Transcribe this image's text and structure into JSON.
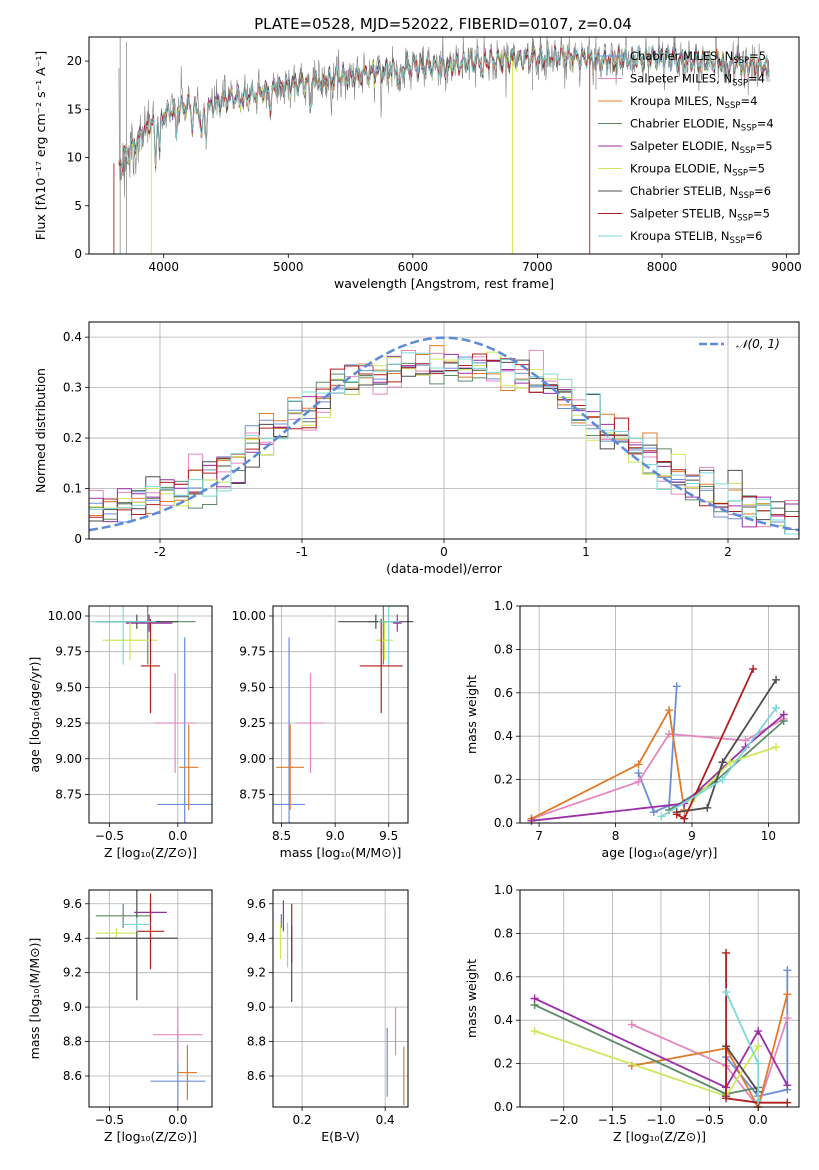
{
  "figure_title": "PLATE=0528, MJD=52022, FIBERID=0107, z=0.04",
  "series": [
    {
      "name": "Chabrier MILES, N$_{SSP}$=5",
      "label_main": "Chabrier MILES, N",
      "label_sub": "SSP",
      "label_end": "=5",
      "color": "#6a8fd8"
    },
    {
      "name": "Salpeter MILES, N$_{SSP}$=4",
      "label_main": "Salpeter MILES, N",
      "label_sub": "SSP",
      "label_end": "=4",
      "color": "#e487c0"
    },
    {
      "name": "Kroupa MILES, N$_{SSP}$=4",
      "label_main": "Kroupa MILES, N",
      "label_sub": "SSP",
      "label_end": "=4",
      "color": "#e07b2a"
    },
    {
      "name": "Chabrier ELODIE, N$_{SSP}$=4",
      "label_main": "Chabrier ELODIE, N",
      "label_sub": "SSP",
      "label_end": "=4",
      "color": "#5e8a68"
    },
    {
      "name": "Salpeter ELODIE, N$_{SSP}$=5",
      "label_main": "Salpeter ELODIE, N",
      "label_sub": "SSP",
      "label_end": "=5",
      "color": "#9b2fa8"
    },
    {
      "name": "Kroupa ELODIE, N$_{SSP}$=5",
      "label_main": "Kroupa ELODIE, N",
      "label_sub": "SSP",
      "label_end": "=5",
      "color": "#cde85a"
    },
    {
      "name": "Chabrier STELIB, N$_{SSP}$=6",
      "label_main": "Chabrier STELIB, N",
      "label_sub": "SSP",
      "label_end": "=6",
      "color": "#4d4d4d"
    },
    {
      "name": "Salpeter STELIB, N$_{SSP}$=5",
      "label_main": "Salpeter STELIB, N",
      "label_sub": "SSP",
      "label_end": "=5",
      "color": "#b01f1f"
    },
    {
      "name": "Kroupa STELIB, N$_{SSP}$=6",
      "label_main": "Kroupa STELIB, N",
      "label_sub": "SSP",
      "label_end": "=6",
      "color": "#7fd8d8"
    }
  ],
  "chart_data": [
    {
      "id": "spectrum",
      "type": "line",
      "xlabel": "wavelength [Angstrom, rest frame]",
      "ylabel": "Flux [fλ10⁻¹⁷ erg cm⁻² s⁻¹ A⁻¹]",
      "xlim": [
        3400,
        9100
      ],
      "ylim": [
        0,
        22.5
      ],
      "xticks": [
        4000,
        5000,
        6000,
        7000,
        8000,
        9000
      ],
      "yticks": [
        0,
        5,
        10,
        15,
        20
      ],
      "data_color": "#808080",
      "data": {
        "x": [
          3650,
          3700,
          3800,
          3900,
          4000,
          4100,
          4200,
          4300,
          4400,
          4500,
          4700,
          5000,
          5200,
          5500,
          5800,
          6000,
          6300,
          6500,
          6800,
          7000,
          7300,
          7500,
          7800,
          8000,
          8300,
          8500,
          8800
        ],
        "y": [
          9.5,
          10.5,
          12.0,
          13.5,
          14.5,
          15.0,
          15.5,
          14.5,
          15.5,
          16.0,
          16.5,
          17.5,
          18.0,
          18.5,
          19.0,
          19.5,
          19.5,
          20.0,
          20.2,
          20.3,
          20.5,
          20.0,
          20.2,
          20.5,
          19.8,
          20.0,
          19.5
        ]
      },
      "model_drops": [
        {
          "series": "Kroupa ELODIE, N$_{SSP}$=5",
          "wavelength_range": [
            3900,
            6800
          ]
        },
        {
          "series": "Salpeter STELIB, N$_{SSP}$=5",
          "wavelength_range": [
            3600,
            7420
          ]
        }
      ],
      "legend_loc": "right"
    },
    {
      "id": "residuals",
      "type": "histogram",
      "xlabel": "(data-model)/error",
      "ylabel": "Normed distribution",
      "xlim": [
        -2.5,
        2.5
      ],
      "ylim": [
        0,
        0.43
      ],
      "xticks": [
        -2,
        -1,
        0,
        1,
        2
      ],
      "yticks": [
        0.0,
        0.1,
        0.2,
        0.3,
        0.4
      ],
      "bins": [
        -2.5,
        -2.4,
        -2.3,
        -2.2,
        -2.1,
        -2.0,
        -1.9,
        -1.8,
        -1.7,
        -1.6,
        -1.5,
        -1.4,
        -1.3,
        -1.2,
        -1.1,
        -1.0,
        -0.9,
        -0.8,
        -0.7,
        -0.6,
        -0.5,
        -0.4,
        -0.3,
        -0.2,
        -0.1,
        0.0,
        0.1,
        0.2,
        0.3,
        0.4,
        0.5,
        0.6,
        0.7,
        0.8,
        0.9,
        1.0,
        1.1,
        1.2,
        1.3,
        1.4,
        1.5,
        1.6,
        1.7,
        1.8,
        1.9,
        2.0,
        2.1,
        2.2,
        2.3,
        2.4,
        2.5
      ],
      "base_density": [
        0.055,
        0.06,
        0.07,
        0.08,
        0.085,
        0.09,
        0.1,
        0.11,
        0.12,
        0.14,
        0.16,
        0.18,
        0.2,
        0.22,
        0.24,
        0.26,
        0.28,
        0.3,
        0.31,
        0.32,
        0.33,
        0.34,
        0.345,
        0.35,
        0.35,
        0.35,
        0.35,
        0.345,
        0.34,
        0.33,
        0.32,
        0.31,
        0.3,
        0.28,
        0.26,
        0.24,
        0.22,
        0.2,
        0.18,
        0.16,
        0.14,
        0.12,
        0.11,
        0.1,
        0.085,
        0.075,
        0.065,
        0.055,
        0.045,
        0.04
      ],
      "reference_label": "𝒩(0, 1)",
      "reference_color": "#5b8bd9",
      "legend_loc": "top-right"
    },
    {
      "id": "age-vs-Z",
      "type": "errorbar",
      "xlabel": "Z [log₁₀(Z/Z⊙)]",
      "ylabel": "age  [log₁₀(age/yr)]",
      "xlim": [
        -0.65,
        0.25
      ],
      "ylim": [
        8.55,
        10.07
      ],
      "xticks": [
        -0.5,
        0.0
      ],
      "xtick_labels": [
        "−0.5",
        "0.0"
      ],
      "yticks": [
        8.75,
        9.0,
        9.25,
        9.5,
        9.75,
        10.0
      ],
      "ytick_labels": [
        "8.75",
        "9.00",
        "9.25",
        "9.50",
        "9.75",
        "10.00"
      ],
      "points": [
        {
          "x": 0.05,
          "xerr": 0.2,
          "y": 8.68,
          "yerr": 1.17
        },
        {
          "x": -0.02,
          "xerr": 0.15,
          "y": 9.25,
          "yerr": 0.35
        },
        {
          "x": 0.08,
          "xerr": 0.07,
          "y": 8.94,
          "yerr": 0.3
        },
        {
          "x": -0.22,
          "xerr": 0.35,
          "y": 9.96,
          "yerr": 0.3
        },
        {
          "x": -0.21,
          "xerr": 0.17,
          "y": 9.95,
          "yerr": 0.06
        },
        {
          "x": -0.35,
          "xerr": 0.2,
          "y": 9.83,
          "yerr": 0.14
        },
        {
          "x": -0.3,
          "xerr": 0.3,
          "y": 9.96,
          "yerr": 0.05
        },
        {
          "x": -0.2,
          "xerr": 0.07,
          "y": 9.65,
          "yerr": 0.33
        },
        {
          "x": -0.4,
          "xerr": 0.24,
          "y": 9.96,
          "yerr": 0.3
        }
      ]
    },
    {
      "id": "age-vs-mass",
      "type": "errorbar",
      "xlabel": "mass [log₁₀(M/M⊙)]",
      "ylabel": "",
      "xlim": [
        8.42,
        9.68
      ],
      "ylim": [
        8.55,
        10.07
      ],
      "xticks": [
        8.5,
        9.0,
        9.5
      ],
      "xtick_labels": [
        "8.5",
        "9.0",
        "9.5"
      ],
      "yticks": [
        8.75,
        9.0,
        9.25,
        9.5,
        9.75,
        10.0
      ],
      "ytick_labels": [
        "8.75",
        "9.00",
        "9.25",
        "9.50",
        "9.75",
        "10.00"
      ],
      "points": [
        {
          "x": 8.57,
          "xerr": 0.15,
          "y": 8.68,
          "yerr": 1.17
        },
        {
          "x": 8.77,
          "xerr": 0.13,
          "y": 9.25,
          "yerr": 0.35
        },
        {
          "x": 8.58,
          "xerr": 0.13,
          "y": 8.94,
          "yerr": 0.3
        },
        {
          "x": 9.45,
          "xerr": 0.15,
          "y": 9.96,
          "yerr": 0.3
        },
        {
          "x": 9.58,
          "xerr": 0.04,
          "y": 9.95,
          "yerr": 0.06
        },
        {
          "x": 9.46,
          "xerr": 0.08,
          "y": 9.83,
          "yerr": 0.14
        },
        {
          "x": 9.38,
          "xerr": 0.35,
          "y": 9.96,
          "yerr": 0.05
        },
        {
          "x": 9.43,
          "xerr": 0.2,
          "y": 9.65,
          "yerr": 0.33
        },
        {
          "x": 9.5,
          "xerr": 0.1,
          "y": 9.96,
          "yerr": 0.3
        }
      ]
    },
    {
      "id": "weight-vs-age",
      "type": "line",
      "xlabel": "age  [log₁₀(age/yr)]",
      "ylabel": "mass weight",
      "xlim": [
        6.75,
        10.4
      ],
      "ylim": [
        0,
        1.0
      ],
      "xticks": [
        7,
        8,
        9,
        10
      ],
      "xtick_labels": [
        "7",
        "8",
        "9",
        "10"
      ],
      "yticks": [
        0.0,
        0.2,
        0.4,
        0.6,
        0.8,
        1.0
      ],
      "ytick_labels": [
        "0.0",
        "0.2",
        "0.4",
        "0.6",
        "0.8",
        "1.0"
      ],
      "lines": [
        {
          "x": [
            8.3,
            8.5,
            8.7,
            8.8
          ],
          "y": [
            0.23,
            0.05,
            0.08,
            0.63
          ]
        },
        {
          "x": [
            6.9,
            8.3,
            8.7,
            9.7,
            10.2
          ],
          "y": [
            0.02,
            0.19,
            0.41,
            0.38,
            0.48
          ]
        },
        {
          "x": [
            6.9,
            8.3,
            8.7,
            8.9
          ],
          "y": [
            0.02,
            0.27,
            0.52,
            0.06
          ]
        },
        {
          "x": [
            8.7,
            9.3,
            10.2
          ],
          "y": [
            0.06,
            0.19,
            0.47
          ]
        },
        {
          "x": [
            6.9,
            8.9,
            9.7,
            10.2
          ],
          "y": [
            0.01,
            0.09,
            0.35,
            0.5
          ]
        },
        {
          "x": [
            9.0,
            9.5,
            10.1
          ],
          "y": [
            0.1,
            0.28,
            0.35
          ]
        },
        {
          "x": [
            8.8,
            9.2,
            9.4,
            10.1
          ],
          "y": [
            0.05,
            0.07,
            0.28,
            0.66
          ]
        },
        {
          "x": [
            8.8,
            8.9,
            9.8
          ],
          "y": [
            0.04,
            0.02,
            0.71
          ]
        },
        {
          "x": [
            8.6,
            9.4,
            10.1
          ],
          "y": [
            0.03,
            0.2,
            0.53
          ]
        }
      ]
    },
    {
      "id": "mass-vs-Z",
      "type": "errorbar",
      "xlabel": "Z [log₁₀(Z/Z⊙)]",
      "ylabel": "mass [log₁₀(M/M⊙)]",
      "xlim": [
        -0.65,
        0.25
      ],
      "ylim": [
        8.42,
        9.68
      ],
      "xticks": [
        -0.5,
        0.0
      ],
      "xtick_labels": [
        "−0.5",
        "0.0"
      ],
      "yticks": [
        8.6,
        8.8,
        9.0,
        9.2,
        9.4,
        9.6
      ],
      "ytick_labels": [
        "8.6",
        "8.8",
        "9.0",
        "9.2",
        "9.4",
        "9.6"
      ],
      "points": [
        {
          "x": 0.0,
          "xerr": 0.2,
          "y": 8.57,
          "yerr": 0.3
        },
        {
          "x": 0.0,
          "xerr": 0.18,
          "y": 8.84,
          "yerr": 0.16
        },
        {
          "x": 0.07,
          "xerr": 0.07,
          "y": 8.62,
          "yerr": 0.16
        },
        {
          "x": -0.4,
          "xerr": 0.2,
          "y": 9.53,
          "yerr": 0.07
        },
        {
          "x": -0.2,
          "xerr": 0.12,
          "y": 9.55,
          "yerr": 0.05
        },
        {
          "x": -0.45,
          "xerr": 0.15,
          "y": 9.43,
          "yerr": 0.03
        },
        {
          "x": -0.3,
          "xerr": 0.3,
          "y": 9.4,
          "yerr": 0.36
        },
        {
          "x": -0.2,
          "xerr": 0.1,
          "y": 9.44,
          "yerr": 0.22
        },
        {
          "x": -0.3,
          "xerr": 0.1,
          "y": 9.48,
          "yerr": 0.04
        }
      ]
    },
    {
      "id": "mass-vs-EBV",
      "type": "errorbar",
      "xlabel": "E(B-V)",
      "ylabel": "",
      "xlim": [
        0.13,
        0.455
      ],
      "ylim": [
        8.42,
        9.68
      ],
      "xticks": [
        0.2,
        0.4
      ],
      "xtick_labels": [
        "0.2",
        "0.4"
      ],
      "yticks": [
        8.6,
        8.8,
        9.0,
        9.2,
        9.4,
        9.6
      ],
      "ytick_labels": [
        "8.6",
        "8.8",
        "9.0",
        "9.2",
        "9.4",
        "9.6"
      ],
      "points": [
        {
          "x": 0.405,
          "y": 8.68,
          "yerr": 0.2
        },
        {
          "x": 0.425,
          "y": 8.86,
          "yerr": 0.14
        },
        {
          "x": 0.445,
          "y": 8.6,
          "yerr": 0.17
        },
        {
          "x": 0.15,
          "y": 9.5,
          "yerr": 0.04
        },
        {
          "x": 0.155,
          "y": 9.53,
          "yerr": 0.09
        },
        {
          "x": 0.148,
          "y": 9.38,
          "yerr": 0.1
        },
        {
          "x": 0.175,
          "y": 9.25,
          "yerr": 0.22
        },
        {
          "x": 0.175,
          "y": 9.43,
          "yerr": 0.17
        },
        {
          "x": 0.165,
          "y": 9.36,
          "yerr": 0.13
        }
      ]
    },
    {
      "id": "weight-vs-Z",
      "type": "line",
      "xlabel": "Z [log₁₀(Z/Z⊙)]",
      "ylabel": "mass weight",
      "xlim": [
        -2.45,
        0.42
      ],
      "ylim": [
        0,
        1.0
      ],
      "xticks": [
        -2.0,
        -1.5,
        -1.0,
        -0.5,
        0.0
      ],
      "xtick_labels": [
        "−2.0",
        "−1.5",
        "−1.0",
        "−0.5",
        "0.0"
      ],
      "yticks": [
        0.0,
        0.2,
        0.4,
        0.6,
        0.8,
        1.0
      ],
      "ytick_labels": [
        "0.0",
        "0.2",
        "0.4",
        "0.6",
        "0.8",
        "1.0"
      ],
      "lines": [
        {
          "x": [
            -0.33,
            0.0,
            0.3,
            0.3
          ],
          "y": [
            0.23,
            0.05,
            0.08,
            0.63
          ]
        },
        {
          "x": [
            -1.3,
            -0.33,
            0.0,
            0.3
          ],
          "y": [
            0.38,
            0.19,
            0.0,
            0.41
          ]
        },
        {
          "x": [
            -1.3,
            -0.33,
            0.0,
            0.3
          ],
          "y": [
            0.19,
            0.27,
            0.0,
            0.52
          ]
        },
        {
          "x": [
            -2.3,
            -0.33,
            0.0
          ],
          "y": [
            0.47,
            0.06,
            0.09
          ]
        },
        {
          "x": [
            -2.3,
            -0.33,
            0.0,
            0.3
          ],
          "y": [
            0.5,
            0.09,
            0.35,
            0.1
          ]
        },
        {
          "x": [
            -2.3,
            -0.33,
            0.0
          ],
          "y": [
            0.35,
            0.05,
            0.28
          ]
        },
        {
          "x": [
            -0.33,
            -0.33,
            0.0
          ],
          "y": [
            0.05,
            0.28,
            0.07
          ]
        },
        {
          "x": [
            -0.33,
            -0.33,
            0.0,
            0.3
          ],
          "y": [
            0.71,
            0.04,
            0.02,
            0.02
          ]
        },
        {
          "x": [
            -0.33,
            0.0,
            0.0
          ],
          "y": [
            0.53,
            0.2,
            0.03
          ]
        }
      ]
    }
  ]
}
